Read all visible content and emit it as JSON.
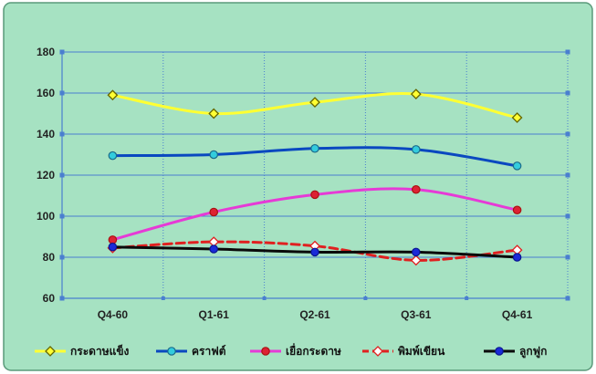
{
  "colors": {
    "background": "#a6e2c2",
    "border": "#5a9a7a",
    "grid": "#4a7fd0"
  },
  "chart_data": {
    "type": "line",
    "categories": [
      "Q4-60",
      "Q1-61",
      "Q2-61",
      "Q3-61",
      "Q4-61"
    ],
    "ylim": [
      60,
      180
    ],
    "yticks": [
      60,
      80,
      100,
      120,
      140,
      160,
      180
    ],
    "grid": true,
    "legend_position": "bottom",
    "series": [
      {
        "name": "กระดาษแข็ง",
        "values": [
          159,
          150,
          155.5,
          159.5,
          148
        ],
        "color": "#ffff33",
        "marker": "diamond",
        "marker_fill": "#ffff33",
        "marker_stroke": "#666600",
        "dashed": false
      },
      {
        "name": "คราฟต์",
        "values": [
          129.5,
          130,
          133,
          132.5,
          124.5
        ],
        "color": "#0a48c0",
        "marker": "circle",
        "marker_fill": "#33ccdd",
        "marker_stroke": "#1a6a8a",
        "dashed": false
      },
      {
        "name": "เยื่อกระดาษ",
        "values": [
          88.5,
          102,
          110.5,
          113,
          103
        ],
        "color": "#e63ad6",
        "marker": "circle",
        "marker_fill": "#dd2233",
        "marker_stroke": "#aa1111",
        "dashed": false
      },
      {
        "name": "พิมพ์เขียน",
        "values": [
          84.5,
          87.5,
          85.5,
          78.5,
          83.5
        ],
        "color": "#e02020",
        "marker": "diamond",
        "marker_fill": "#ffffff",
        "marker_stroke": "#e02020",
        "dashed": true
      },
      {
        "name": "ลูกฟูก",
        "values": [
          85,
          84,
          82.5,
          82.5,
          80
        ],
        "color": "#0a0a0a",
        "marker": "circle",
        "marker_fill": "#1a2ad8",
        "marker_stroke": "#0a1590",
        "dashed": false
      }
    ]
  }
}
